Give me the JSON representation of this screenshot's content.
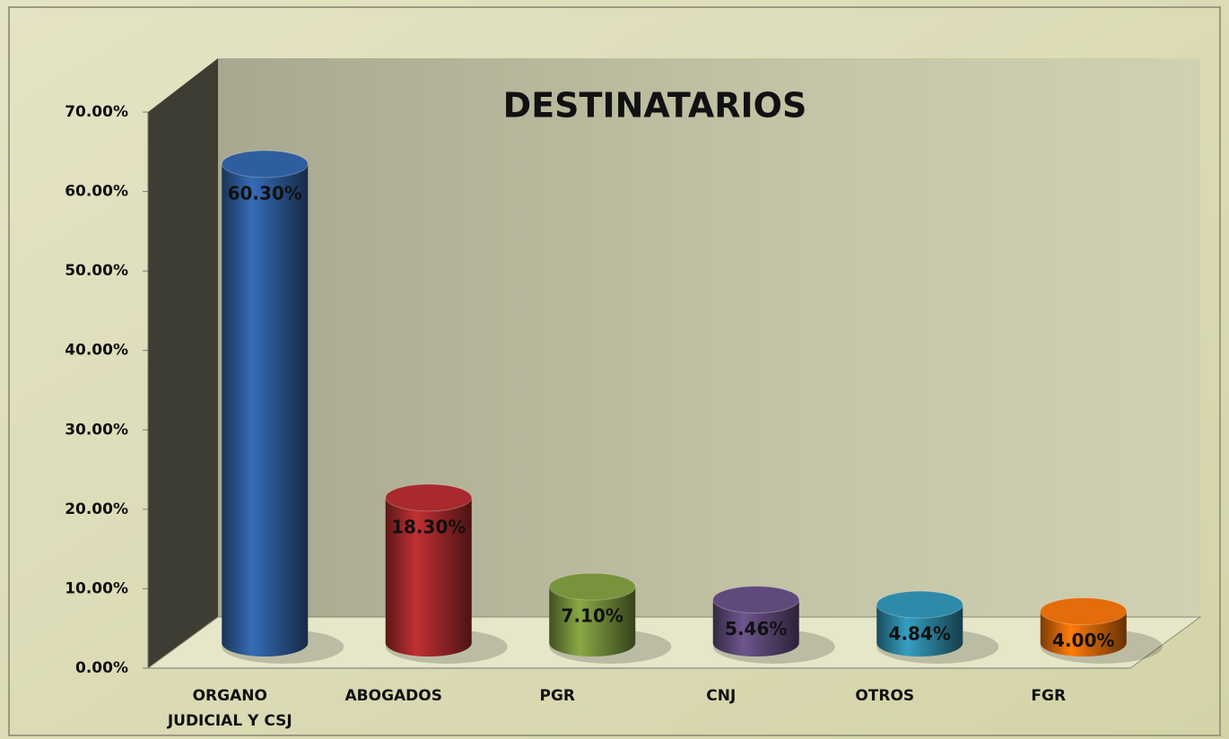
{
  "chart_data": {
    "type": "bar3d",
    "title": "DESTINATARIOS",
    "categories": [
      "ORGANO JUDICIAL Y CSJ",
      "ABOGADOS",
      "PGR",
      "CNJ",
      "OTROS",
      "FGR"
    ],
    "values": [
      60.3,
      18.3,
      7.1,
      5.46,
      4.84,
      4.0
    ],
    "value_labels": [
      "60.30%",
      "18.30%",
      "7.10%",
      "5.46%",
      "4.84%",
      "4.00%"
    ],
    "colors": [
      "#2f5e9e",
      "#a82a2c",
      "#77933c",
      "#604a7b",
      "#2e8aa8",
      "#e46c0a"
    ],
    "ylim": [
      0,
      70
    ],
    "yticks": [
      {
        "value": 0,
        "label": "0.00%"
      },
      {
        "value": 10,
        "label": "10.00%"
      },
      {
        "value": 20,
        "label": "20.00%"
      },
      {
        "value": 30,
        "label": "30.00%"
      },
      {
        "value": 40,
        "label": "40.00%"
      },
      {
        "value": 50,
        "label": "50.00%"
      },
      {
        "value": 60,
        "label": "60.00%"
      },
      {
        "value": 70,
        "label": "70.00%"
      }
    ]
  }
}
